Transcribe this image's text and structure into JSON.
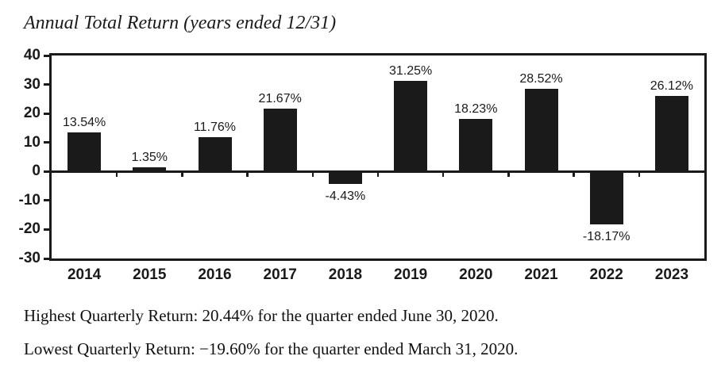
{
  "chart": {
    "title": "Annual Total Return (years ended 12/31)"
  },
  "chart_data": {
    "type": "bar",
    "title": "Annual Total Return (years ended 12/31)",
    "categories": [
      "2014",
      "2015",
      "2016",
      "2017",
      "2018",
      "2019",
      "2020",
      "2021",
      "2022",
      "2023"
    ],
    "values": [
      13.54,
      1.35,
      11.76,
      21.67,
      -4.43,
      31.25,
      18.23,
      28.52,
      -18.17,
      26.12
    ],
    "bar_labels": [
      "13.54%",
      "1.35%",
      "11.76%",
      "21.67%",
      "-4.43%",
      "31.25%",
      "18.23%",
      "28.52%",
      "-18.17%",
      "26.12%"
    ],
    "xlabel": "",
    "ylabel": "",
    "ylim": [
      -30,
      40
    ],
    "yticks": [
      40,
      30,
      20,
      10,
      0,
      -10,
      -20,
      -30
    ],
    "grid": false,
    "legend": null,
    "bar_color": "#1a1a1a",
    "axis_color": "#1a1a1a"
  },
  "footnotes": {
    "highest": "Highest Quarterly Return: 20.44% for the quarter ended June 30, 2020.",
    "lowest": "Lowest Quarterly Return: −19.60% for the quarter ended March 31, 2020."
  }
}
